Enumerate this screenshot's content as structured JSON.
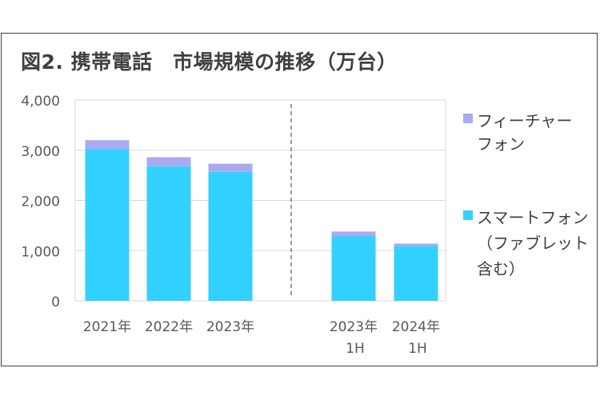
{
  "title": "図2. 携帯電話　市場規模の推移（万台）",
  "colors": {
    "feature_phone": "#aaaaf0",
    "smartphone": "#33d1ff",
    "grid": "#d9d9d9",
    "axis_text": "#595959",
    "divider": "#595959"
  },
  "legend": [
    {
      "lines": [
        "フィーチャー",
        "フォン"
      ],
      "color_key": "feature_phone"
    },
    {
      "lines": [
        "スマートフォン",
        "（ファブレット",
        "含む）"
      ],
      "color_key": "smartphone"
    }
  ],
  "chart_data": {
    "type": "bar",
    "stacked": true,
    "categories": [
      [
        "2021年"
      ],
      [
        "2022年"
      ],
      [
        "2023年"
      ],
      [
        "2023年",
        "1H"
      ],
      [
        "2024年",
        "1H"
      ]
    ],
    "series": [
      {
        "name": "スマートフォン（ファブレット含む）",
        "color_key": "smartphone",
        "values": [
          3020,
          2680,
          2570,
          1290,
          1090
        ]
      },
      {
        "name": "フィーチャーフォン",
        "color_key": "feature_phone",
        "values": [
          180,
          180,
          160,
          90,
          50
        ]
      }
    ],
    "ylim": [
      0,
      4000
    ],
    "yticks": [
      "0",
      "1,000",
      "2,000",
      "3,000",
      "4,000"
    ],
    "ytick_values": [
      0,
      1000,
      2000,
      3000,
      4000
    ],
    "grid": true,
    "divider_between": [
      2,
      3
    ],
    "legend_position": "right"
  }
}
